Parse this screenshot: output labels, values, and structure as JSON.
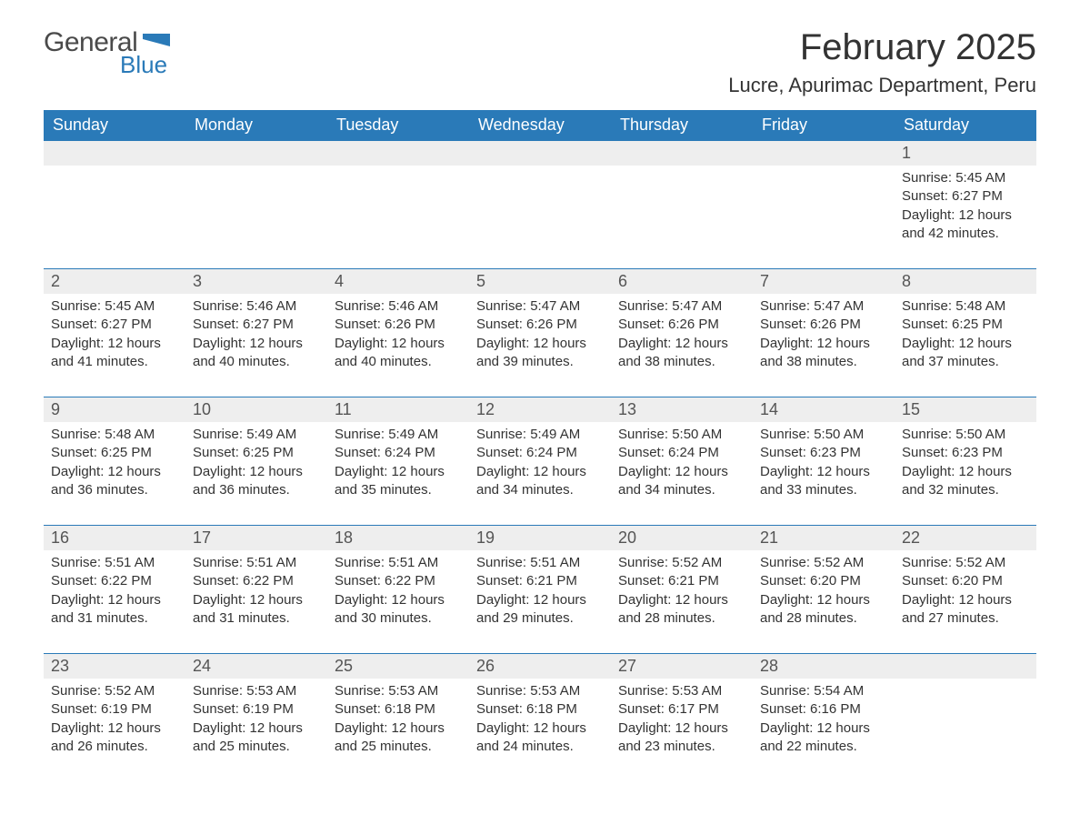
{
  "logo": {
    "text_general": "General",
    "text_blue": "Blue",
    "flag_color": "#2a7ab8"
  },
  "title": {
    "month": "February 2025",
    "location": "Lucre, Apurimac Department, Peru"
  },
  "colors": {
    "header_bg": "#2a7ab8",
    "header_text": "#ffffff",
    "daynum_bg": "#eeeeee",
    "text": "#333333",
    "rule": "#2a7ab8"
  },
  "weekdays": [
    "Sunday",
    "Monday",
    "Tuesday",
    "Wednesday",
    "Thursday",
    "Friday",
    "Saturday"
  ],
  "weeks": [
    [
      null,
      null,
      null,
      null,
      null,
      null,
      {
        "n": "1",
        "sunrise": "Sunrise: 5:45 AM",
        "sunset": "Sunset: 6:27 PM",
        "daylight": "Daylight: 12 hours and 42 minutes."
      }
    ],
    [
      {
        "n": "2",
        "sunrise": "Sunrise: 5:45 AM",
        "sunset": "Sunset: 6:27 PM",
        "daylight": "Daylight: 12 hours and 41 minutes."
      },
      {
        "n": "3",
        "sunrise": "Sunrise: 5:46 AM",
        "sunset": "Sunset: 6:27 PM",
        "daylight": "Daylight: 12 hours and 40 minutes."
      },
      {
        "n": "4",
        "sunrise": "Sunrise: 5:46 AM",
        "sunset": "Sunset: 6:26 PM",
        "daylight": "Daylight: 12 hours and 40 minutes."
      },
      {
        "n": "5",
        "sunrise": "Sunrise: 5:47 AM",
        "sunset": "Sunset: 6:26 PM",
        "daylight": "Daylight: 12 hours and 39 minutes."
      },
      {
        "n": "6",
        "sunrise": "Sunrise: 5:47 AM",
        "sunset": "Sunset: 6:26 PM",
        "daylight": "Daylight: 12 hours and 38 minutes."
      },
      {
        "n": "7",
        "sunrise": "Sunrise: 5:47 AM",
        "sunset": "Sunset: 6:26 PM",
        "daylight": "Daylight: 12 hours and 38 minutes."
      },
      {
        "n": "8",
        "sunrise": "Sunrise: 5:48 AM",
        "sunset": "Sunset: 6:25 PM",
        "daylight": "Daylight: 12 hours and 37 minutes."
      }
    ],
    [
      {
        "n": "9",
        "sunrise": "Sunrise: 5:48 AM",
        "sunset": "Sunset: 6:25 PM",
        "daylight": "Daylight: 12 hours and 36 minutes."
      },
      {
        "n": "10",
        "sunrise": "Sunrise: 5:49 AM",
        "sunset": "Sunset: 6:25 PM",
        "daylight": "Daylight: 12 hours and 36 minutes."
      },
      {
        "n": "11",
        "sunrise": "Sunrise: 5:49 AM",
        "sunset": "Sunset: 6:24 PM",
        "daylight": "Daylight: 12 hours and 35 minutes."
      },
      {
        "n": "12",
        "sunrise": "Sunrise: 5:49 AM",
        "sunset": "Sunset: 6:24 PM",
        "daylight": "Daylight: 12 hours and 34 minutes."
      },
      {
        "n": "13",
        "sunrise": "Sunrise: 5:50 AM",
        "sunset": "Sunset: 6:24 PM",
        "daylight": "Daylight: 12 hours and 34 minutes."
      },
      {
        "n": "14",
        "sunrise": "Sunrise: 5:50 AM",
        "sunset": "Sunset: 6:23 PM",
        "daylight": "Daylight: 12 hours and 33 minutes."
      },
      {
        "n": "15",
        "sunrise": "Sunrise: 5:50 AM",
        "sunset": "Sunset: 6:23 PM",
        "daylight": "Daylight: 12 hours and 32 minutes."
      }
    ],
    [
      {
        "n": "16",
        "sunrise": "Sunrise: 5:51 AM",
        "sunset": "Sunset: 6:22 PM",
        "daylight": "Daylight: 12 hours and 31 minutes."
      },
      {
        "n": "17",
        "sunrise": "Sunrise: 5:51 AM",
        "sunset": "Sunset: 6:22 PM",
        "daylight": "Daylight: 12 hours and 31 minutes."
      },
      {
        "n": "18",
        "sunrise": "Sunrise: 5:51 AM",
        "sunset": "Sunset: 6:22 PM",
        "daylight": "Daylight: 12 hours and 30 minutes."
      },
      {
        "n": "19",
        "sunrise": "Sunrise: 5:51 AM",
        "sunset": "Sunset: 6:21 PM",
        "daylight": "Daylight: 12 hours and 29 minutes."
      },
      {
        "n": "20",
        "sunrise": "Sunrise: 5:52 AM",
        "sunset": "Sunset: 6:21 PM",
        "daylight": "Daylight: 12 hours and 28 minutes."
      },
      {
        "n": "21",
        "sunrise": "Sunrise: 5:52 AM",
        "sunset": "Sunset: 6:20 PM",
        "daylight": "Daylight: 12 hours and 28 minutes."
      },
      {
        "n": "22",
        "sunrise": "Sunrise: 5:52 AM",
        "sunset": "Sunset: 6:20 PM",
        "daylight": "Daylight: 12 hours and 27 minutes."
      }
    ],
    [
      {
        "n": "23",
        "sunrise": "Sunrise: 5:52 AM",
        "sunset": "Sunset: 6:19 PM",
        "daylight": "Daylight: 12 hours and 26 minutes."
      },
      {
        "n": "24",
        "sunrise": "Sunrise: 5:53 AM",
        "sunset": "Sunset: 6:19 PM",
        "daylight": "Daylight: 12 hours and 25 minutes."
      },
      {
        "n": "25",
        "sunrise": "Sunrise: 5:53 AM",
        "sunset": "Sunset: 6:18 PM",
        "daylight": "Daylight: 12 hours and 25 minutes."
      },
      {
        "n": "26",
        "sunrise": "Sunrise: 5:53 AM",
        "sunset": "Sunset: 6:18 PM",
        "daylight": "Daylight: 12 hours and 24 minutes."
      },
      {
        "n": "27",
        "sunrise": "Sunrise: 5:53 AM",
        "sunset": "Sunset: 6:17 PM",
        "daylight": "Daylight: 12 hours and 23 minutes."
      },
      {
        "n": "28",
        "sunrise": "Sunrise: 5:54 AM",
        "sunset": "Sunset: 6:16 PM",
        "daylight": "Daylight: 12 hours and 22 minutes."
      },
      null
    ]
  ]
}
